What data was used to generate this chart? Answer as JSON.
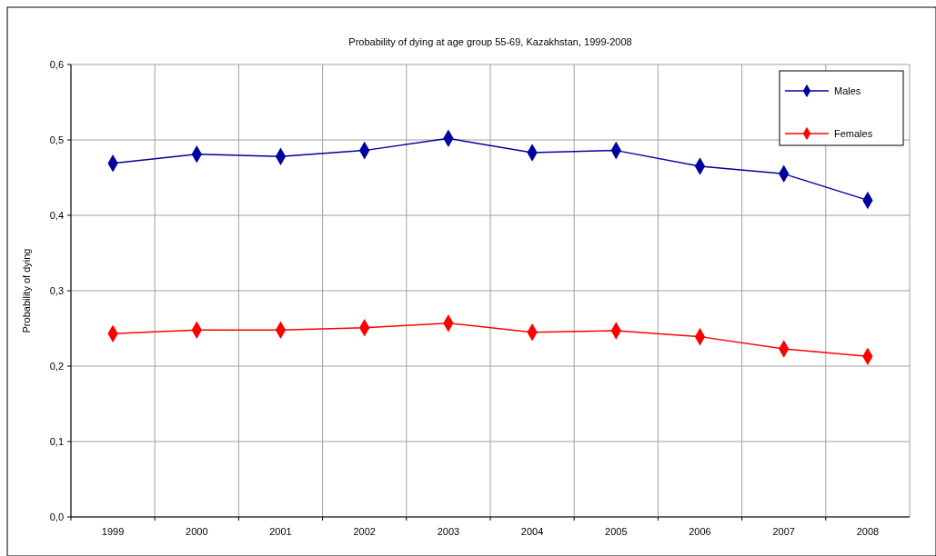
{
  "chart_data": {
    "type": "line",
    "title": "Probability of dying at age group 55-69, Kazakhstan, 1999-2008",
    "ylabel": "Probability of dying",
    "categories": [
      "1999",
      "2000",
      "2001",
      "2002",
      "2003",
      "2004",
      "2005",
      "2006",
      "2007",
      "2008"
    ],
    "series": [
      {
        "name": "Males",
        "color": "#0000a0",
        "values": [
          0.469,
          0.481,
          0.478,
          0.486,
          0.502,
          0.483,
          0.486,
          0.465,
          0.455,
          0.42
        ]
      },
      {
        "name": "Females",
        "color": "#ff0000",
        "values": [
          0.243,
          0.248,
          0.248,
          0.251,
          0.257,
          0.245,
          0.247,
          0.239,
          0.223,
          0.213
        ]
      }
    ],
    "ylim": [
      0,
      0.6
    ],
    "yticks": [
      {
        "value": 0,
        "label": "0,0"
      },
      {
        "value": 0.1,
        "label": "0,1"
      },
      {
        "value": 0.2,
        "label": "0,2"
      },
      {
        "value": 0.3,
        "label": "0,3"
      },
      {
        "value": 0.4,
        "label": "0,4"
      },
      {
        "value": 0.5,
        "label": "0,5"
      },
      {
        "value": 0.6,
        "label": "0,6"
      }
    ],
    "grid": true,
    "legend": "top right",
    "marker": "diamond",
    "line_style": "solid"
  }
}
